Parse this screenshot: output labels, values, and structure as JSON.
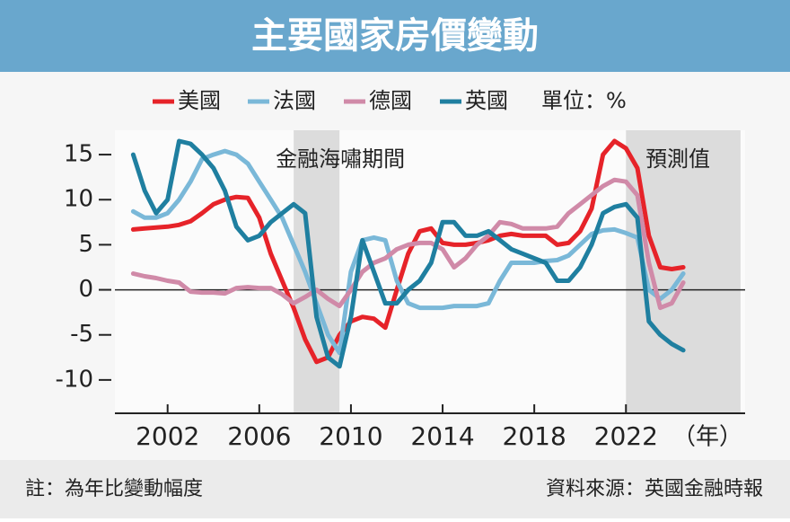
{
  "chart_data": {
    "type": "line",
    "title": "主要國家房價變動",
    "unit_label": "單位：%",
    "x_label": "（年）",
    "note": "註：為年比變動幅度",
    "source": "資料來源：英國金融時報",
    "xlim": [
      1999.7,
      2027.2
    ],
    "ylim": [
      -13.7,
      17.7
    ],
    "xticks": [
      2002,
      2006,
      2010,
      2014,
      2018,
      2022
    ],
    "yticks": [
      15,
      10,
      5,
      0,
      -5,
      -10
    ],
    "grid": false,
    "shaded_regions": [
      {
        "label": "金融海嘯期間",
        "start": 2007.5,
        "end": 2009.5
      },
      {
        "label": "預測值",
        "start": 2022,
        "end": 2027
      }
    ],
    "x": [
      2000.5,
      2001,
      2001.5,
      2002,
      2002.5,
      2003,
      2003.5,
      2004,
      2004.5,
      2005,
      2005.5,
      2006,
      2006.5,
      2007,
      2007.5,
      2008,
      2008.5,
      2009,
      2009.5,
      2010,
      2010.5,
      2011,
      2011.5,
      2012,
      2012.5,
      2013,
      2013.5,
      2014,
      2014.5,
      2015,
      2015.5,
      2016,
      2016.5,
      2017,
      2017.5,
      2018,
      2018.5,
      2019,
      2019.5,
      2020,
      2020.5,
      2021,
      2021.5,
      2022,
      2022.5,
      2023,
      2023.5,
      2024,
      2024.5
    ],
    "series": [
      {
        "name": "美國",
        "color": "#e62329",
        "values": [
          6.7,
          6.8,
          6.9,
          7,
          7.2,
          7.6,
          8.5,
          9.5,
          10,
          10.3,
          10.2,
          8,
          4,
          1,
          -2,
          -5.5,
          -8,
          -7.5,
          -5,
          -3.5,
          -3,
          -3.2,
          -4.2,
          0,
          4,
          6.5,
          6.8,
          5.2,
          5,
          5,
          5.2,
          5.5,
          6,
          6.2,
          6,
          6,
          6,
          5,
          5.2,
          6.5,
          9,
          15,
          16.5,
          15.7,
          13.5,
          6,
          2.5,
          2.3,
          2.5
        ]
      },
      {
        "name": "法國",
        "color": "#7ab8d8",
        "values": [
          8.7,
          8,
          8,
          8.5,
          10,
          12,
          14.5,
          15,
          15.4,
          15,
          14,
          12,
          10,
          8,
          5,
          2,
          -1.5,
          -5,
          -7,
          2,
          5.5,
          5.8,
          5.5,
          1,
          -1.5,
          -2,
          -2,
          -2,
          -1.8,
          -1.8,
          -1.8,
          -1.5,
          1,
          3,
          3,
          3,
          3.2,
          3.3,
          3.8,
          5,
          6.2,
          6.6,
          6.7,
          6.3,
          5.8,
          0,
          -1,
          0,
          1.8
        ]
      },
      {
        "name": "德國",
        "color": "#d08aa8",
        "values": [
          1.8,
          1.5,
          1.3,
          1,
          0.8,
          -0.2,
          -0.3,
          -0.3,
          -0.4,
          0.2,
          0.3,
          0.2,
          0.2,
          -0.5,
          -1.5,
          -0.8,
          0,
          -1,
          -1.8,
          0,
          2,
          3,
          3.5,
          4.5,
          5,
          5.2,
          5.2,
          4.5,
          2.5,
          3.5,
          5,
          6,
          7.5,
          7.3,
          6.8,
          6.8,
          6.8,
          7,
          8.5,
          9.5,
          10.5,
          11.5,
          12.2,
          12,
          10.5,
          3,
          -2,
          -1.5,
          0.8
        ]
      },
      {
        "name": "英國",
        "color": "#1f7fa0",
        "values": [
          15,
          11,
          8.5,
          10,
          16.5,
          16.2,
          15,
          13.5,
          11,
          7,
          5.5,
          6,
          7.5,
          8.5,
          9.5,
          8.5,
          -3,
          -7.5,
          -8.5,
          -3,
          5.5,
          2,
          -1.5,
          -1.5,
          0,
          1,
          3,
          7.5,
          7.5,
          6,
          6,
          6.5,
          5.5,
          4.5,
          4,
          3.5,
          3,
          1,
          1,
          2.5,
          5,
          8.5,
          9.2,
          9.5,
          8,
          -3.5,
          -5,
          -6,
          -6.7
        ]
      }
    ]
  }
}
